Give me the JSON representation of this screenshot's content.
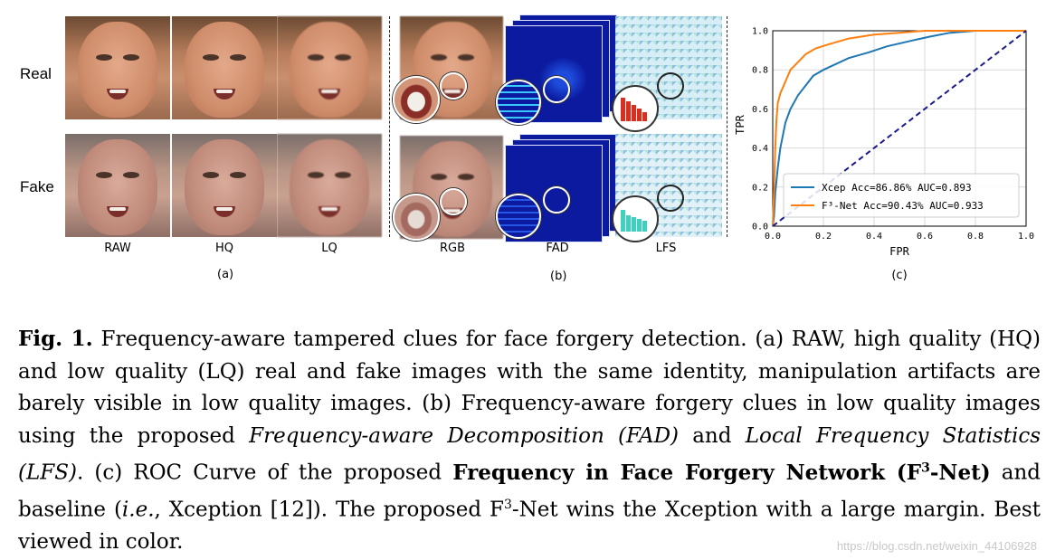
{
  "panel_a": {
    "row_labels": [
      "Real",
      "Fake"
    ],
    "col_labels": [
      "RAW",
      "HQ",
      "LQ"
    ],
    "label": "(a)"
  },
  "panel_b": {
    "col_labels": [
      "RGB",
      "FAD",
      "LFS"
    ],
    "label": "(b)"
  },
  "panel_c": {
    "label": "(c)",
    "chart_data": {
      "type": "line",
      "xlabel": "FPR",
      "ylabel": "TPR",
      "xlim": [
        0,
        1
      ],
      "ylim": [
        0,
        1
      ],
      "x_ticks": [
        "0.0",
        "0.2",
        "0.4",
        "0.6",
        "0.8",
        "1.0"
      ],
      "y_ticks": [
        "0.0",
        "0.2",
        "0.4",
        "0.6",
        "0.8",
        "1.0"
      ],
      "grid": true,
      "legend_position": "lower-right",
      "series": [
        {
          "name": "Xcep",
          "legend_text": "Xcep   Acc=86.86% AUC=0.893",
          "color": "#1f77b4",
          "points": [
            [
              0,
              0
            ],
            [
              0.005,
              0.05
            ],
            [
              0.01,
              0.17
            ],
            [
              0.02,
              0.3
            ],
            [
              0.03,
              0.4
            ],
            [
              0.05,
              0.53
            ],
            [
              0.07,
              0.6
            ],
            [
              0.1,
              0.67
            ],
            [
              0.13,
              0.72
            ],
            [
              0.16,
              0.77
            ],
            [
              0.2,
              0.8
            ],
            [
              0.25,
              0.83
            ],
            [
              0.3,
              0.86
            ],
            [
              0.38,
              0.89
            ],
            [
              0.45,
              0.92
            ],
            [
              0.55,
              0.95
            ],
            [
              0.62,
              0.97
            ],
            [
              0.7,
              0.99
            ],
            [
              0.8,
              1.0
            ],
            [
              1.0,
              1.0
            ]
          ]
        },
        {
          "name": "F3-Net",
          "legend_text": "F³-Net Acc=90.43% AUC=0.933",
          "color": "#ff7f0e",
          "points": [
            [
              0,
              0
            ],
            [
              0.005,
              0.18
            ],
            [
              0.01,
              0.4
            ],
            [
              0.015,
              0.55
            ],
            [
              0.02,
              0.63
            ],
            [
              0.03,
              0.68
            ],
            [
              0.05,
              0.74
            ],
            [
              0.07,
              0.8
            ],
            [
              0.1,
              0.84
            ],
            [
              0.13,
              0.88
            ],
            [
              0.17,
              0.91
            ],
            [
              0.22,
              0.93
            ],
            [
              0.3,
              0.96
            ],
            [
              0.4,
              0.98
            ],
            [
              0.5,
              0.99
            ],
            [
              0.6,
              1.0
            ],
            [
              1.0,
              1.0
            ]
          ]
        },
        {
          "name": "chance",
          "color": "#1a1a8c",
          "dashed": true,
          "points": [
            [
              0,
              0
            ],
            [
              1,
              1
            ]
          ]
        }
      ]
    }
  },
  "caption": {
    "fig_label": "Fig. 1.",
    "part1": " Frequency-aware tampered clues for face forgery detection. (a) RAW, high quality (HQ) and low quality (LQ) real and fake images with the same identity, manipulation artifacts are barely visible in low quality images. (b) Frequency-aware forgery clues in low quality images using the proposed ",
    "fad_term": "Frequency-aware Decomposition (FAD)",
    "and_word": " and ",
    "lfs_term": "Local Frequency Statistics (LFS)",
    "part2": ". (c) ROC Curve of the proposed ",
    "net_bold": "Frequency in Face Forgery Network (F",
    "sup3": "3",
    "net_bold_end": "-Net)",
    "part3": " and baseline (",
    "ie": "i.e.",
    "part4": ", Xception [12]). The proposed F",
    "part5": "-Net wins the Xception with a large margin. Best viewed in color."
  },
  "watermark": "https://blog.csdn.net/weixin_44106928"
}
